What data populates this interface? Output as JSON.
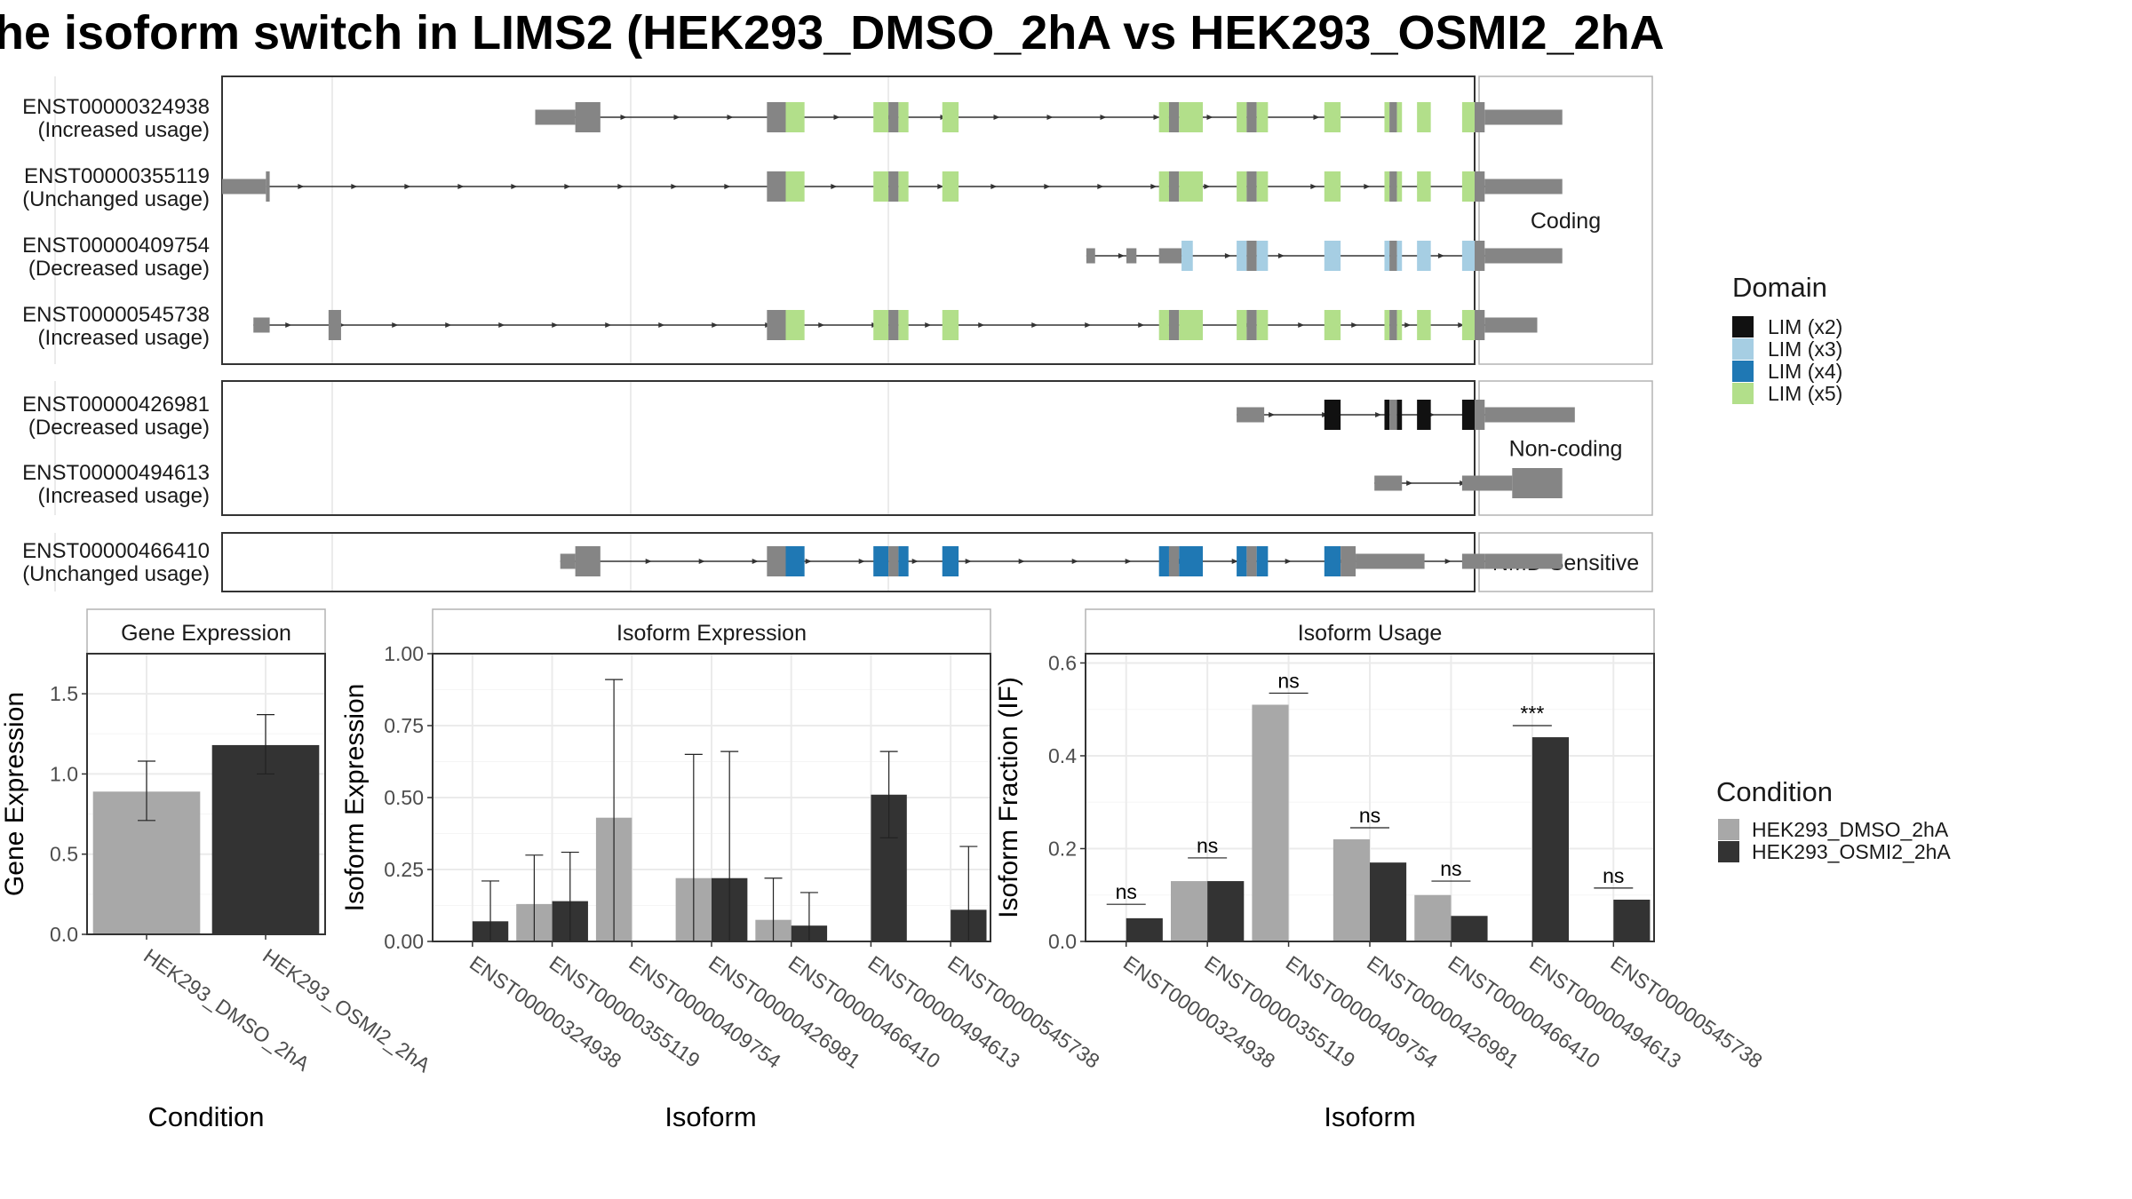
{
  "title": "he isoform switch in LIMS2 (HEK293_DMSO_2hA vs HEK293_OSMI2_2hA",
  "colors": {
    "exon": "#858585",
    "dmso": "#a8a8a8",
    "osmi": "#333333",
    "grid": "#ebebeb",
    "panel_border": "#333333",
    "strip_border": "#b3b3b3"
  },
  "structure": {
    "x_domain": [
      0,
      1000
    ],
    "groups": [
      {
        "label": "Coding",
        "tracks": [
          0,
          1,
          2,
          3
        ]
      },
      {
        "label": "Non-coding",
        "tracks": [
          4,
          5
        ]
      },
      {
        "label": "NMD Sensitive",
        "tracks": [
          6
        ]
      }
    ],
    "tracks": [
      {
        "id": "ENST00000324938",
        "status": "(Increased usage)",
        "line": [
          250,
          930
        ],
        "exons": [
          [
            250,
            282,
            "utr"
          ],
          [
            282,
            302,
            "cds"
          ],
          [
            435,
            450,
            "cds"
          ],
          [
            450,
            465,
            "LIM (x5)"
          ],
          [
            520,
            532,
            "LIM (x5)"
          ],
          [
            532,
            540,
            "cds"
          ],
          [
            540,
            548,
            "LIM (x5)"
          ],
          [
            575,
            588,
            "LIM (x5)"
          ],
          [
            748,
            756,
            "LIM (x5)"
          ],
          [
            756,
            764,
            "cds"
          ],
          [
            764,
            783,
            "LIM (x5)"
          ],
          [
            810,
            818,
            "LIM (x5)"
          ],
          [
            818,
            826,
            "cds"
          ],
          [
            826,
            835,
            "LIM (x5)"
          ],
          [
            880,
            893,
            "LIM (x5)"
          ],
          [
            928,
            932,
            "LIM (x5)"
          ],
          [
            932,
            938,
            "cds"
          ],
          [
            938,
            942,
            "LIM (x5)"
          ],
          [
            954,
            965,
            "LIM (x5)"
          ],
          [
            990,
            1000,
            "LIM (x5)"
          ],
          [
            1000,
            1008,
            "cds"
          ],
          [
            1008,
            1070,
            "utr"
          ]
        ]
      },
      {
        "id": "ENST00000355119",
        "status": "(Unchanged usage)",
        "line": [
          35,
          1010
        ],
        "exons": [
          [
            0,
            35,
            "utr"
          ],
          [
            35,
            38,
            "cds"
          ],
          [
            435,
            450,
            "cds"
          ],
          [
            450,
            465,
            "LIM (x5)"
          ],
          [
            520,
            532,
            "LIM (x5)"
          ],
          [
            532,
            540,
            "cds"
          ],
          [
            540,
            548,
            "LIM (x5)"
          ],
          [
            575,
            588,
            "LIM (x5)"
          ],
          [
            748,
            756,
            "LIM (x5)"
          ],
          [
            756,
            764,
            "cds"
          ],
          [
            764,
            783,
            "LIM (x5)"
          ],
          [
            810,
            818,
            "LIM (x5)"
          ],
          [
            818,
            826,
            "cds"
          ],
          [
            826,
            835,
            "LIM (x5)"
          ],
          [
            880,
            893,
            "LIM (x5)"
          ],
          [
            928,
            932,
            "LIM (x5)"
          ],
          [
            932,
            938,
            "cds"
          ],
          [
            938,
            942,
            "LIM (x5)"
          ],
          [
            954,
            965,
            "LIM (x5)"
          ],
          [
            990,
            1000,
            "LIM (x5)"
          ],
          [
            1000,
            1008,
            "cds"
          ],
          [
            1008,
            1070,
            "utr"
          ]
        ]
      },
      {
        "id": "ENST00000409754",
        "status": "(Decreased usage)",
        "line": [
          690,
          1010
        ],
        "exons": [
          [
            690,
            697,
            "utr"
          ],
          [
            722,
            730,
            "utr"
          ],
          [
            748,
            766,
            "utr"
          ],
          [
            766,
            775,
            "LIM (x3)"
          ],
          [
            810,
            818,
            "LIM (x3)"
          ],
          [
            818,
            826,
            "cds"
          ],
          [
            826,
            835,
            "LIM (x3)"
          ],
          [
            880,
            893,
            "LIM (x3)"
          ],
          [
            928,
            932,
            "LIM (x3)"
          ],
          [
            932,
            938,
            "cds"
          ],
          [
            938,
            942,
            "LIM (x3)"
          ],
          [
            954,
            965,
            "LIM (x3)"
          ],
          [
            990,
            1000,
            "LIM (x3)"
          ],
          [
            1000,
            1008,
            "cds"
          ],
          [
            1008,
            1070,
            "utr"
          ]
        ]
      },
      {
        "id": "ENST00000545738",
        "status": "(Increased usage)",
        "line": [
          25,
          1010
        ],
        "exons": [
          [
            25,
            38,
            "utr"
          ],
          [
            85,
            95,
            "cds"
          ],
          [
            435,
            450,
            "cds"
          ],
          [
            450,
            465,
            "LIM (x5)"
          ],
          [
            520,
            532,
            "LIM (x5)"
          ],
          [
            532,
            540,
            "cds"
          ],
          [
            540,
            548,
            "LIM (x5)"
          ],
          [
            575,
            588,
            "LIM (x5)"
          ],
          [
            748,
            756,
            "LIM (x5)"
          ],
          [
            756,
            764,
            "cds"
          ],
          [
            764,
            783,
            "LIM (x5)"
          ],
          [
            810,
            818,
            "LIM (x5)"
          ],
          [
            818,
            826,
            "cds"
          ],
          [
            826,
            835,
            "LIM (x5)"
          ],
          [
            880,
            893,
            "LIM (x5)"
          ],
          [
            928,
            932,
            "LIM (x5)"
          ],
          [
            932,
            938,
            "cds"
          ],
          [
            938,
            942,
            "LIM (x5)"
          ],
          [
            954,
            965,
            "LIM (x5)"
          ],
          [
            990,
            1000,
            "LIM (x5)"
          ],
          [
            1000,
            1008,
            "cds"
          ],
          [
            1008,
            1050,
            "utr"
          ]
        ]
      },
      {
        "id": "ENST00000426981",
        "status": "(Decreased usage)",
        "line": [
          810,
          1010
        ],
        "exons": [
          [
            810,
            832,
            "utr"
          ],
          [
            880,
            893,
            "LIM (x2)"
          ],
          [
            928,
            932,
            "LIM (x2)"
          ],
          [
            932,
            938,
            "cds"
          ],
          [
            938,
            942,
            "LIM (x2)"
          ],
          [
            954,
            965,
            "LIM (x2)"
          ],
          [
            990,
            1000,
            "LIM (x2)"
          ],
          [
            1000,
            1008,
            "cds"
          ],
          [
            1008,
            1080,
            "utr"
          ]
        ]
      },
      {
        "id": "ENST00000494613",
        "status": "(Increased usage)",
        "line": [
          920,
          1010
        ],
        "exons": [
          [
            920,
            942,
            "utr"
          ],
          [
            990,
            1030,
            "utr"
          ],
          [
            1030,
            1070,
            "cds"
          ]
        ]
      },
      {
        "id": "ENST00000466410",
        "status": "(Unchanged usage)",
        "line": [
          270,
          1010
        ],
        "exons": [
          [
            270,
            282,
            "utr"
          ],
          [
            282,
            302,
            "cds"
          ],
          [
            435,
            450,
            "cds"
          ],
          [
            450,
            465,
            "LIM (x4)"
          ],
          [
            520,
            532,
            "LIM (x4)"
          ],
          [
            532,
            540,
            "cds"
          ],
          [
            540,
            548,
            "LIM (x4)"
          ],
          [
            575,
            588,
            "LIM (x4)"
          ],
          [
            748,
            756,
            "LIM (x4)"
          ],
          [
            756,
            764,
            "cds"
          ],
          [
            764,
            783,
            "LIM (x4)"
          ],
          [
            810,
            818,
            "LIM (x4)"
          ],
          [
            818,
            826,
            "cds"
          ],
          [
            826,
            835,
            "LIM (x4)"
          ],
          [
            880,
            893,
            "LIM (x4)"
          ],
          [
            893,
            905,
            "cds"
          ],
          [
            905,
            960,
            "utr"
          ],
          [
            990,
            1000,
            "utr"
          ],
          [
            1000,
            1008,
            "utr"
          ],
          [
            1008,
            1070,
            "utr"
          ]
        ]
      }
    ]
  },
  "domain_legend": {
    "title": "Domain",
    "items": [
      {
        "label": "LIM (x2)",
        "color": "#111111"
      },
      {
        "label": "LIM (x3)",
        "color": "#a6cee3"
      },
      {
        "label": "LIM (x4)",
        "color": "#1f78b4"
      },
      {
        "label": "LIM (x5)",
        "color": "#b2df8a"
      }
    ]
  },
  "condition_legend": {
    "title": "Condition",
    "items": [
      {
        "label": "HEK293_DMSO_2hA",
        "color": "#a8a8a8"
      },
      {
        "label": "HEK293_OSMI2_2hA",
        "color": "#333333"
      }
    ]
  },
  "chart_data": [
    {
      "type": "bar",
      "title": "Gene Expression",
      "xlabel": "Condition",
      "ylabel": "Gene Expression",
      "ylim": [
        0,
        1.75
      ],
      "yticks": [
        0.0,
        0.5,
        1.0,
        1.5
      ],
      "ytick_labels": [
        "0.0",
        "0.5",
        "1.0",
        "1.5"
      ],
      "categories": [
        "HEK293_DMSO_2hA",
        "HEK293_OSMI2_2hA"
      ],
      "values": [
        0.89,
        1.18
      ],
      "err_low": [
        0.71,
        1.0
      ],
      "err_high": [
        1.08,
        1.37
      ]
    },
    {
      "type": "bar",
      "title": "Isoform Expression",
      "xlabel": "Isoform",
      "ylabel": "Isoform Expression",
      "ylim": [
        0,
        1.0
      ],
      "yticks": [
        0.0,
        0.25,
        0.5,
        0.75,
        1.0
      ],
      "ytick_labels": [
        "0.00",
        "0.25",
        "0.50",
        "0.75",
        "1.00"
      ],
      "categories": [
        "ENST00000324938",
        "ENST00000355119",
        "ENST00000409754",
        "ENST00000426981",
        "ENST00000466410",
        "ENST00000494613",
        "ENST00000545738"
      ],
      "series": [
        {
          "name": "HEK293_DMSO_2hA",
          "values": [
            0.0,
            0.13,
            0.43,
            0.22,
            0.075,
            0.0,
            0.0
          ],
          "err_low": [
            null,
            0.0,
            0.0,
            0.0,
            0.0,
            null,
            null
          ],
          "err_high": [
            null,
            0.3,
            0.91,
            0.65,
            0.22,
            null,
            null
          ]
        },
        {
          "name": "HEK293_OSMI2_2hA",
          "values": [
            0.07,
            0.14,
            0.0,
            0.22,
            0.055,
            0.51,
            0.11
          ],
          "err_low": [
            0.0,
            0.0,
            null,
            0.0,
            0.0,
            0.36,
            0.0
          ],
          "err_high": [
            0.21,
            0.31,
            null,
            0.66,
            0.17,
            0.66,
            0.33
          ]
        }
      ]
    },
    {
      "type": "bar",
      "title": "Isoform Usage",
      "xlabel": "Isoform",
      "ylabel": "Isoform Fraction (IF)",
      "ylim": [
        0,
        0.62
      ],
      "yticks": [
        0.0,
        0.2,
        0.4,
        0.6
      ],
      "ytick_labels": [
        "0.0",
        "0.2",
        "0.4",
        "0.6"
      ],
      "categories": [
        "ENST00000324938",
        "ENST00000355119",
        "ENST00000409754",
        "ENST00000426981",
        "ENST00000466410",
        "ENST00000494613",
        "ENST00000545738"
      ],
      "series": [
        {
          "name": "HEK293_DMSO_2hA",
          "values": [
            0.0,
            0.13,
            0.51,
            0.22,
            0.1,
            0.0,
            0.0
          ]
        },
        {
          "name": "HEK293_OSMI2_2hA",
          "values": [
            0.05,
            0.13,
            0.0,
            0.17,
            0.055,
            0.44,
            0.09
          ]
        }
      ],
      "significance": [
        "ns",
        "ns",
        "ns",
        "ns",
        "ns",
        "***",
        "ns"
      ],
      "sig_y": [
        0.08,
        0.18,
        0.535,
        0.245,
        0.13,
        0.465,
        0.115
      ]
    }
  ]
}
